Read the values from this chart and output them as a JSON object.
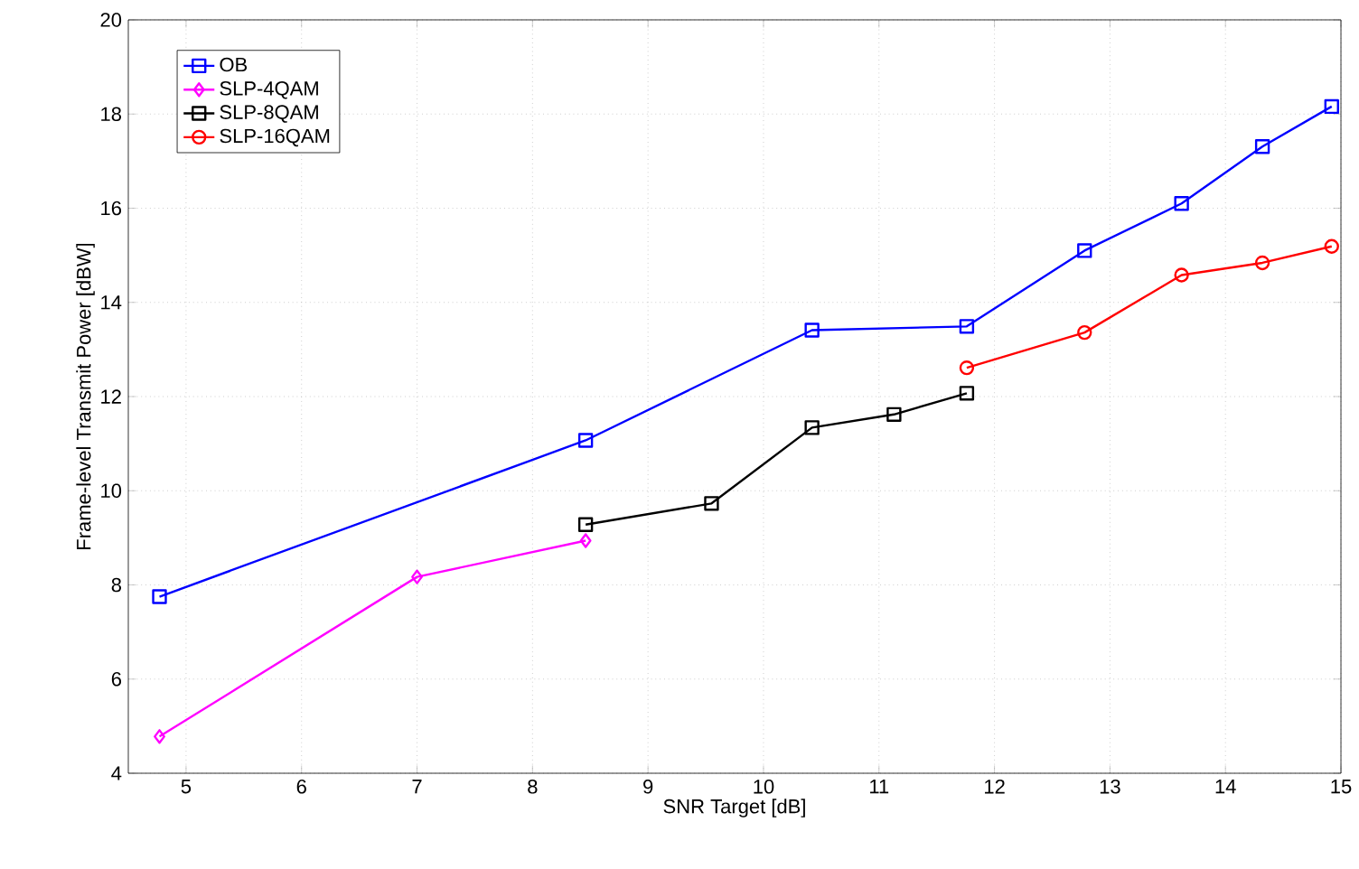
{
  "chart_data": {
    "type": "line",
    "xlabel": "SNR Target [dB]",
    "ylabel": "Frame-level Transmit Power [dBW]",
    "xlim": [
      4.5,
      15
    ],
    "ylim": [
      4,
      20
    ],
    "xticks": [
      5,
      6,
      7,
      8,
      9,
      10,
      11,
      12,
      13,
      14,
      15
    ],
    "yticks": [
      4,
      6,
      8,
      10,
      12,
      14,
      16,
      18,
      20
    ],
    "grid": true,
    "legend": "top left",
    "line_style": "solid",
    "series": [
      {
        "name": "OB",
        "color": "#0000ff",
        "marker": "square",
        "x": [
          4.77,
          8.46,
          10.42,
          11.76,
          12.78,
          13.62,
          14.32,
          14.92
        ],
        "values": [
          7.75,
          11.07,
          13.41,
          13.49,
          15.1,
          16.1,
          17.31,
          18.16
        ]
      },
      {
        "name": "SLP-4QAM",
        "color": "#ff00ff",
        "marker": "diamond",
        "x": [
          4.77,
          7.0,
          8.46
        ],
        "values": [
          4.78,
          8.17,
          8.94
        ]
      },
      {
        "name": "SLP-8QAM",
        "color": "#000000",
        "marker": "square",
        "x": [
          8.46,
          9.55,
          10.42,
          11.13,
          11.76
        ],
        "values": [
          9.28,
          9.73,
          11.34,
          11.62,
          12.07
        ]
      },
      {
        "name": "SLP-16QAM",
        "color": "#ff0000",
        "marker": "circle",
        "x": [
          11.76,
          12.78,
          13.62,
          14.32,
          14.92
        ],
        "values": [
          12.61,
          13.36,
          14.58,
          14.84,
          15.19
        ]
      }
    ]
  }
}
